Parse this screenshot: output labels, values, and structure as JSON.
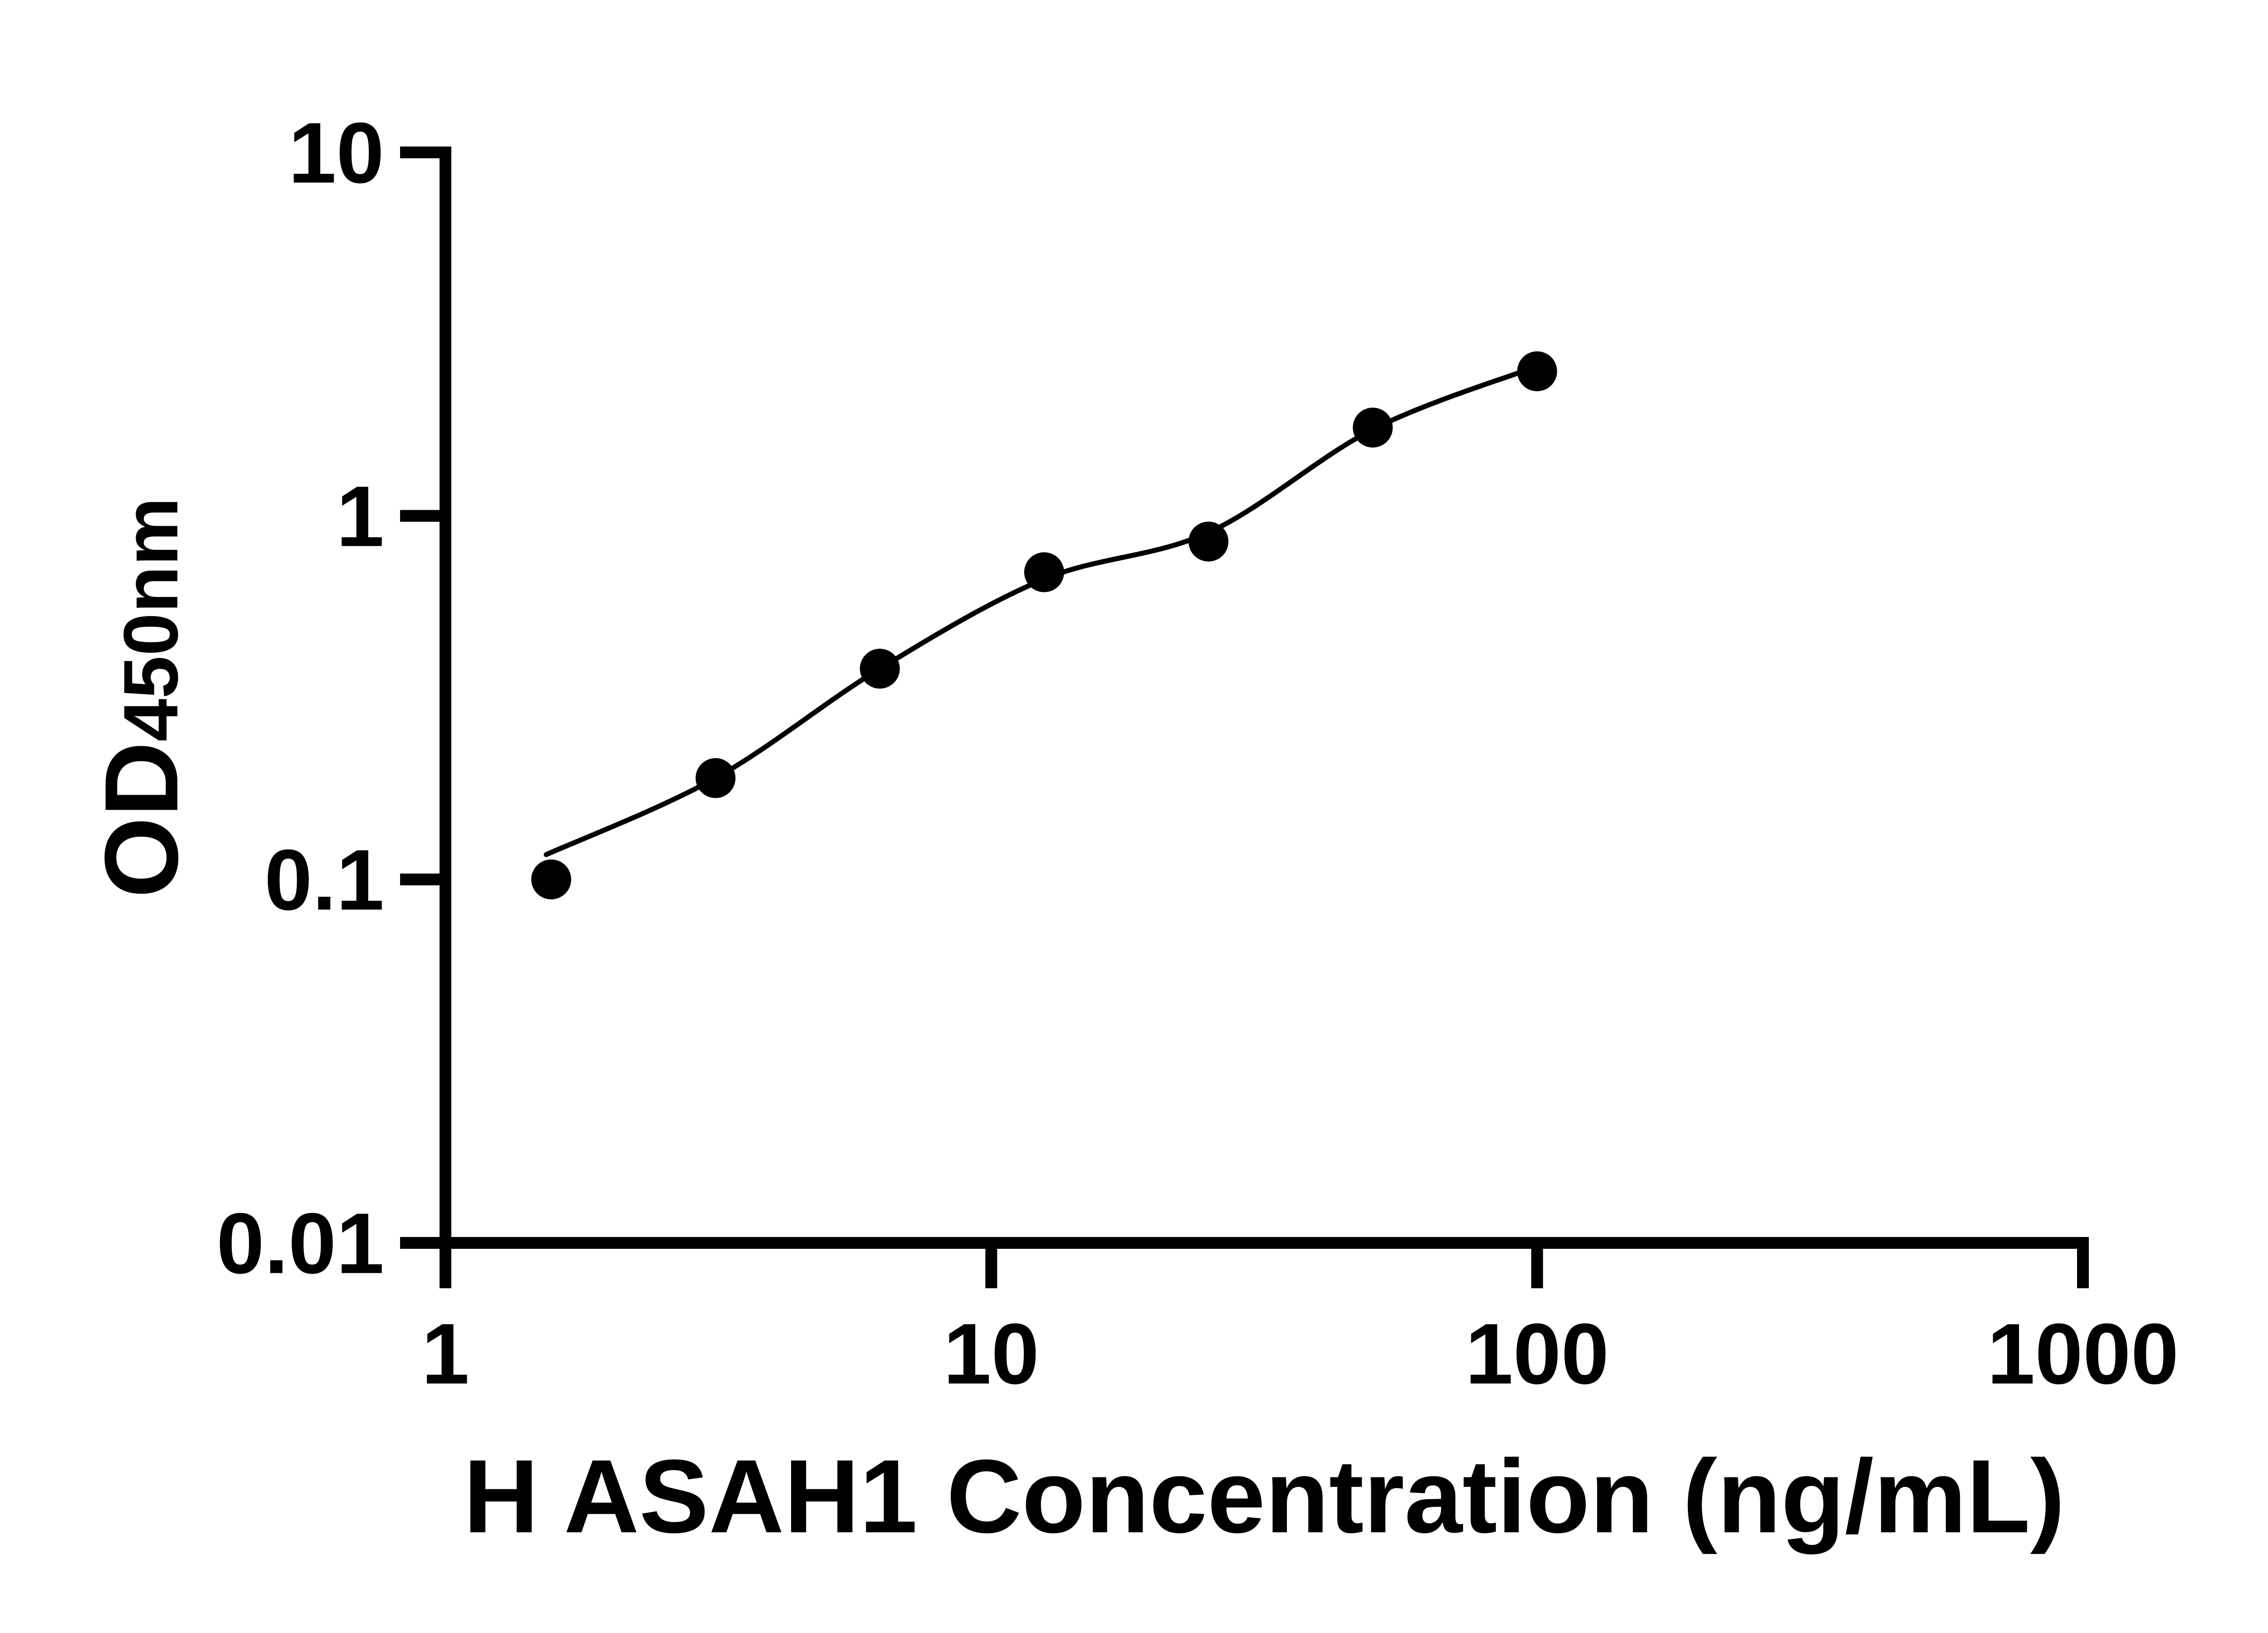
{
  "page": {
    "background_color": "#ffffff",
    "foreground_color": "#000000"
  },
  "chart_data": {
    "type": "scatter",
    "title": "",
    "xlabel": "H ASAH1 Concentration (ng/mL)",
    "ylabel_main": "OD",
    "ylabel_sub": "450nm",
    "xscale": "log",
    "yscale": "log",
    "xlim": [
      1,
      1000
    ],
    "ylim": [
      0.01,
      10
    ],
    "grid": false,
    "legend": "none",
    "x_tick_labels": [
      "1",
      "10",
      "100",
      "1000"
    ],
    "x_tick_values": [
      1,
      10,
      100,
      1000
    ],
    "y_tick_labels": [
      "10",
      "1",
      "0.1",
      "0.01"
    ],
    "y_tick_values": [
      10,
      1,
      0.1,
      0.01
    ],
    "marker_color": "#000000",
    "line_color": "#000000",
    "axis_color": "#000000",
    "points": [
      {
        "x": 1.5625,
        "y": 0.1
      },
      {
        "x": 3.125,
        "y": 0.19
      },
      {
        "x": 6.25,
        "y": 0.38
      },
      {
        "x": 12.5,
        "y": 0.7
      },
      {
        "x": 25,
        "y": 0.85
      },
      {
        "x": 50,
        "y": 1.75
      },
      {
        "x": 100,
        "y": 2.5
      }
    ],
    "trend_line": [
      {
        "x": 1.53,
        "y": 0.117
      },
      {
        "x": 3.125,
        "y": 0.19
      },
      {
        "x": 6.25,
        "y": 0.38
      },
      {
        "x": 12.5,
        "y": 0.67
      },
      {
        "x": 25,
        "y": 0.9
      },
      {
        "x": 50,
        "y": 1.73
      },
      {
        "x": 100,
        "y": 2.58
      }
    ]
  }
}
